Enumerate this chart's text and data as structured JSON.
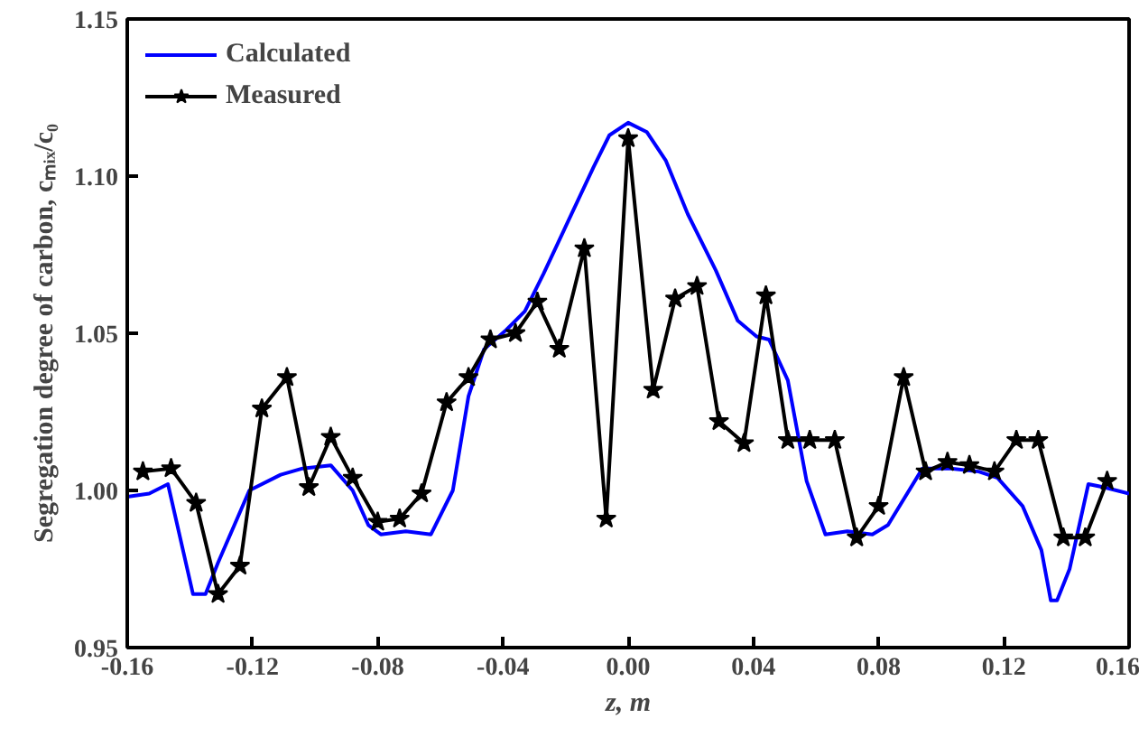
{
  "chart_data": {
    "type": "line",
    "xlabel": "z, m",
    "ylabel": "Segregation degree of carbon, cₘᵢₓ/c₀",
    "xlim": [
      -0.16,
      0.16
    ],
    "ylim": [
      0.95,
      1.15
    ],
    "xticks": [
      {
        "value": -0.16,
        "label": "-0.16"
      },
      {
        "value": -0.12,
        "label": "-0.12"
      },
      {
        "value": -0.08,
        "label": "-0.08"
      },
      {
        "value": -0.04,
        "label": "-0.04"
      },
      {
        "value": 0,
        "label": "0.00"
      },
      {
        "value": 0.04,
        "label": "0.04"
      },
      {
        "value": 0.08,
        "label": "0.08"
      },
      {
        "value": 0.12,
        "label": "0.12"
      },
      {
        "value": 0.16,
        "label": "0.16"
      }
    ],
    "yticks": [
      {
        "value": 0.95,
        "label": "0.95"
      },
      {
        "value": 1.0,
        "label": "1.00"
      },
      {
        "value": 1.05,
        "label": "1.05"
      },
      {
        "value": 1.1,
        "label": "1.10"
      },
      {
        "value": 1.15,
        "label": "1.15"
      }
    ],
    "grid": false,
    "legend": "top left",
    "series": [
      {
        "name": "Calculated",
        "color": "#0000ff",
        "marker": "none",
        "x": [
          -0.16,
          -0.153,
          -0.147,
          -0.139,
          -0.135,
          -0.131,
          -0.121,
          -0.111,
          -0.104,
          -0.095,
          -0.088,
          -0.083,
          -0.079,
          -0.071,
          -0.063,
          -0.056,
          -0.051,
          -0.046,
          -0.039,
          -0.033,
          -0.027,
          -0.019,
          -0.011,
          -0.006,
          0.0,
          0.006,
          0.012,
          0.019,
          0.028,
          0.035,
          0.041,
          0.045,
          0.051,
          0.057,
          0.063,
          0.07,
          0.078,
          0.083,
          0.094,
          0.103,
          0.112,
          0.118,
          0.126,
          0.132,
          0.135,
          0.137,
          0.141,
          0.147,
          0.152,
          0.16
        ],
        "values": [
          0.998,
          0.999,
          1.002,
          0.967,
          0.967,
          0.977,
          1.0,
          1.005,
          1.007,
          1.008,
          1.0,
          0.989,
          0.986,
          0.987,
          0.986,
          1.0,
          1.03,
          1.045,
          1.051,
          1.057,
          1.069,
          1.086,
          1.103,
          1.113,
          1.117,
          1.114,
          1.105,
          1.088,
          1.07,
          1.054,
          1.049,
          1.048,
          1.035,
          1.003,
          0.986,
          0.987,
          0.986,
          0.989,
          1.007,
          1.007,
          1.006,
          1.004,
          0.995,
          0.981,
          0.965,
          0.965,
          0.975,
          1.002,
          1.001,
          0.999
        ]
      },
      {
        "name": "Measured",
        "color": "#000000",
        "marker": "star",
        "x": [
          -0.155,
          -0.146,
          -0.138,
          -0.131,
          -0.124,
          -0.117,
          -0.109,
          -0.102,
          -0.095,
          -0.088,
          -0.08,
          -0.073,
          -0.066,
          -0.058,
          -0.051,
          -0.044,
          -0.036,
          -0.029,
          -0.022,
          -0.014,
          -0.007,
          0.0,
          0.008,
          0.015,
          0.022,
          0.029,
          0.037,
          0.044,
          0.051,
          0.058,
          0.066,
          0.073,
          0.08,
          0.088,
          0.095,
          0.102,
          0.109,
          0.117,
          0.124,
          0.131,
          0.139,
          0.146,
          0.153
        ],
        "values": [
          1.006,
          1.007,
          0.996,
          0.967,
          0.976,
          1.026,
          1.036,
          1.001,
          1.017,
          1.004,
          0.99,
          0.991,
          0.999,
          1.028,
          1.036,
          1.048,
          1.05,
          1.06,
          1.045,
          1.077,
          0.991,
          1.112,
          1.032,
          1.061,
          1.065,
          1.022,
          1.015,
          1.062,
          1.016,
          1.016,
          1.016,
          0.985,
          0.995,
          1.036,
          1.006,
          1.009,
          1.008,
          1.006,
          1.016,
          1.016,
          0.985,
          0.985,
          1.003
        ]
      }
    ]
  }
}
